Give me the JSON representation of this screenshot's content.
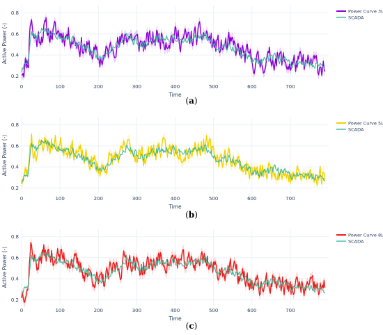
{
  "captions": [
    {
      "open": "(",
      "letter": "a",
      "close": ")"
    },
    {
      "open": "(",
      "letter": "b",
      "close": ")"
    },
    {
      "open": "(",
      "letter": "c",
      "close": ")"
    }
  ],
  "chart_data": [
    {
      "type": "line",
      "xlabel": "Time",
      "ylabel": "Active Power (-)",
      "xlim": [
        0,
        800
      ],
      "ylim": [
        0.15,
        0.87
      ],
      "x_ticks": [
        0,
        100,
        200,
        300,
        400,
        500,
        600,
        700
      ],
      "y_ticks": [
        0.2,
        0.4,
        0.6,
        0.8
      ],
      "grid": true,
      "legend_position": "top-right",
      "series": [
        {
          "name": "Power Curve 3L",
          "color": "#8b00d6",
          "band": true,
          "knots_x": [
            0,
            8,
            18,
            22,
            26,
            30,
            40,
            52,
            60,
            75,
            90,
            110,
            130,
            150,
            170,
            190,
            200,
            215,
            230,
            245,
            260,
            270,
            285,
            300,
            320,
            340,
            360,
            380,
            400,
            420,
            440,
            460,
            480,
            500,
            520,
            540,
            560,
            580,
            600,
            620,
            640,
            660,
            680,
            700,
            720,
            740,
            760,
            780,
            790
          ],
          "knots_y": [
            0.26,
            0.3,
            0.36,
            0.7,
            0.78,
            0.58,
            0.55,
            0.6,
            0.65,
            0.6,
            0.62,
            0.6,
            0.58,
            0.5,
            0.46,
            0.42,
            0.35,
            0.38,
            0.45,
            0.52,
            0.5,
            0.6,
            0.58,
            0.52,
            0.5,
            0.55,
            0.58,
            0.55,
            0.58,
            0.55,
            0.55,
            0.58,
            0.6,
            0.5,
            0.47,
            0.5,
            0.45,
            0.4,
            0.35,
            0.32,
            0.35,
            0.38,
            0.35,
            0.3,
            0.33,
            0.3,
            0.32,
            0.3,
            0.3
          ],
          "noise_amplitude": 0.09,
          "seed": 11
        },
        {
          "name": "SCADA",
          "color": "#3cb99b",
          "band": false,
          "knots_x": [
            0,
            8,
            18,
            22,
            26,
            30,
            40,
            52,
            60,
            75,
            90,
            110,
            130,
            150,
            170,
            190,
            200,
            215,
            230,
            245,
            260,
            270,
            285,
            300,
            320,
            340,
            360,
            380,
            400,
            420,
            440,
            460,
            480,
            500,
            520,
            540,
            560,
            580,
            600,
            620,
            640,
            660,
            680,
            700,
            720,
            740,
            760,
            780,
            790
          ],
          "knots_y": [
            0.26,
            0.3,
            0.36,
            0.55,
            0.62,
            0.6,
            0.56,
            0.62,
            0.65,
            0.6,
            0.6,
            0.58,
            0.55,
            0.5,
            0.46,
            0.42,
            0.38,
            0.4,
            0.45,
            0.5,
            0.52,
            0.58,
            0.56,
            0.52,
            0.5,
            0.54,
            0.56,
            0.55,
            0.56,
            0.55,
            0.54,
            0.56,
            0.58,
            0.5,
            0.48,
            0.48,
            0.45,
            0.4,
            0.36,
            0.33,
            0.35,
            0.37,
            0.35,
            0.32,
            0.33,
            0.31,
            0.32,
            0.3,
            0.3
          ],
          "noise_amplitude": 0.035,
          "seed": 5
        }
      ]
    },
    {
      "type": "line",
      "xlabel": "Time",
      "ylabel": "Active Power (-)",
      "xlim": [
        0,
        800
      ],
      "ylim": [
        0.15,
        0.87
      ],
      "x_ticks": [
        0,
        100,
        200,
        300,
        400,
        500,
        600,
        700
      ],
      "y_ticks": [
        0.2,
        0.4,
        0.6,
        0.8
      ],
      "grid": true,
      "legend_position": "top-right",
      "series": [
        {
          "name": "Power Curve 5L",
          "color": "#f2d200",
          "band": true,
          "knots_x": [
            0,
            8,
            18,
            22,
            26,
            30,
            40,
            52,
            60,
            75,
            90,
            110,
            130,
            150,
            170,
            190,
            200,
            215,
            230,
            245,
            260,
            270,
            285,
            300,
            320,
            340,
            360,
            380,
            400,
            420,
            440,
            460,
            480,
            500,
            520,
            540,
            560,
            580,
            600,
            620,
            640,
            660,
            680,
            700,
            720,
            740,
            760,
            780,
            790
          ],
          "knots_y": [
            0.28,
            0.32,
            0.36,
            0.62,
            0.7,
            0.55,
            0.55,
            0.6,
            0.65,
            0.6,
            0.62,
            0.6,
            0.58,
            0.52,
            0.46,
            0.44,
            0.38,
            0.4,
            0.46,
            0.5,
            0.5,
            0.6,
            0.58,
            0.52,
            0.5,
            0.55,
            0.58,
            0.55,
            0.58,
            0.55,
            0.56,
            0.6,
            0.62,
            0.52,
            0.48,
            0.5,
            0.45,
            0.4,
            0.36,
            0.33,
            0.35,
            0.38,
            0.35,
            0.3,
            0.33,
            0.3,
            0.32,
            0.32,
            0.32
          ],
          "noise_amplitude": 0.08,
          "seed": 23
        },
        {
          "name": "SCADA",
          "color": "#3cb99b",
          "band": false,
          "knots_x": [
            0,
            8,
            18,
            22,
            26,
            30,
            40,
            52,
            60,
            75,
            90,
            110,
            130,
            150,
            170,
            190,
            200,
            215,
            230,
            245,
            260,
            270,
            285,
            300,
            320,
            340,
            360,
            380,
            400,
            420,
            440,
            460,
            480,
            500,
            520,
            540,
            560,
            580,
            600,
            620,
            640,
            660,
            680,
            700,
            720,
            740,
            760,
            780,
            790
          ],
          "knots_y": [
            0.26,
            0.3,
            0.36,
            0.55,
            0.62,
            0.6,
            0.56,
            0.62,
            0.65,
            0.6,
            0.6,
            0.58,
            0.55,
            0.5,
            0.46,
            0.42,
            0.38,
            0.4,
            0.45,
            0.5,
            0.52,
            0.58,
            0.56,
            0.52,
            0.5,
            0.54,
            0.56,
            0.55,
            0.56,
            0.55,
            0.54,
            0.56,
            0.58,
            0.5,
            0.48,
            0.48,
            0.45,
            0.4,
            0.36,
            0.33,
            0.35,
            0.37,
            0.35,
            0.32,
            0.33,
            0.31,
            0.32,
            0.3,
            0.3
          ],
          "noise_amplitude": 0.035,
          "seed": 5
        }
      ]
    },
    {
      "type": "line",
      "xlabel": "Time",
      "ylabel": "Active Power (-)",
      "xlim": [
        0,
        800
      ],
      "ylim": [
        0.15,
        0.87
      ],
      "x_ticks": [
        0,
        100,
        200,
        300,
        400,
        500,
        600,
        700
      ],
      "y_ticks": [
        0.2,
        0.4,
        0.6,
        0.8
      ],
      "grid": true,
      "legend_position": "top-right",
      "series": [
        {
          "name": "Power Curve 8L",
          "color": "#ee1c1c",
          "band": true,
          "knots_x": [
            0,
            8,
            18,
            22,
            26,
            30,
            40,
            52,
            60,
            75,
            90,
            110,
            130,
            150,
            170,
            190,
            200,
            215,
            230,
            245,
            260,
            270,
            285,
            300,
            320,
            340,
            360,
            380,
            400,
            420,
            440,
            460,
            480,
            500,
            520,
            540,
            560,
            580,
            600,
            620,
            640,
            660,
            680,
            700,
            720,
            740,
            760,
            780,
            790
          ],
          "knots_y": [
            0.26,
            0.3,
            0.34,
            0.68,
            0.78,
            0.58,
            0.55,
            0.6,
            0.65,
            0.6,
            0.62,
            0.6,
            0.58,
            0.5,
            0.46,
            0.42,
            0.35,
            0.38,
            0.45,
            0.52,
            0.5,
            0.6,
            0.58,
            0.52,
            0.5,
            0.55,
            0.58,
            0.55,
            0.58,
            0.55,
            0.55,
            0.58,
            0.6,
            0.5,
            0.47,
            0.5,
            0.45,
            0.4,
            0.35,
            0.32,
            0.35,
            0.38,
            0.35,
            0.3,
            0.33,
            0.3,
            0.32,
            0.3,
            0.3
          ],
          "noise_amplitude": 0.085,
          "seed": 37
        },
        {
          "name": "SCADA",
          "color": "#3cb99b",
          "band": false,
          "knots_x": [
            0,
            8,
            18,
            22,
            26,
            30,
            40,
            52,
            60,
            75,
            90,
            110,
            130,
            150,
            170,
            190,
            200,
            215,
            230,
            245,
            260,
            270,
            285,
            300,
            320,
            340,
            360,
            380,
            400,
            420,
            440,
            460,
            480,
            500,
            520,
            540,
            560,
            580,
            600,
            620,
            640,
            660,
            680,
            700,
            720,
            740,
            760,
            780,
            790
          ],
          "knots_y": [
            0.26,
            0.3,
            0.36,
            0.55,
            0.62,
            0.6,
            0.56,
            0.62,
            0.65,
            0.6,
            0.6,
            0.58,
            0.55,
            0.5,
            0.46,
            0.42,
            0.38,
            0.4,
            0.45,
            0.5,
            0.52,
            0.58,
            0.56,
            0.52,
            0.5,
            0.54,
            0.56,
            0.55,
            0.56,
            0.55,
            0.54,
            0.56,
            0.58,
            0.5,
            0.48,
            0.48,
            0.45,
            0.4,
            0.36,
            0.33,
            0.35,
            0.37,
            0.35,
            0.32,
            0.33,
            0.31,
            0.32,
            0.3,
            0.3
          ],
          "noise_amplitude": 0.035,
          "seed": 5
        }
      ]
    }
  ]
}
